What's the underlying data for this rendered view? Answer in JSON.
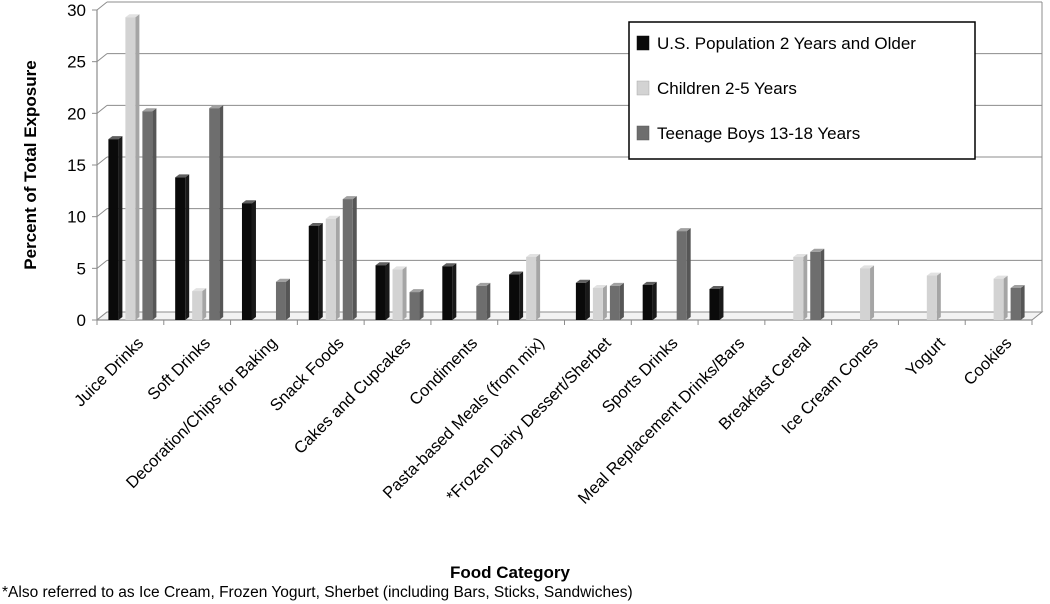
{
  "chart_data": {
    "type": "bar",
    "title": "",
    "xlabel": "Food Category",
    "ylabel": "Percent of Total Exposure",
    "ylim": [
      0,
      30
    ],
    "yticks": [
      0,
      5,
      10,
      15,
      20,
      25,
      30
    ],
    "grid": true,
    "legend_position": "top-right",
    "categories": [
      "Juice Drinks",
      "Soft Drinks",
      "Decoration/Chips for Baking",
      "Snack Foods",
      "Cakes and Cupcakes",
      "Condiments",
      "Pasta-based Meals (from mix)",
      "*Frozen Dairy Dessert/Sherbet",
      "Sports Drinks",
      "Meal Replacement Drinks/Bars",
      "Breakfast Cereal",
      "Ice Cream Cones",
      "Yogurt",
      "Cookies"
    ],
    "series": [
      {
        "name": "U.S. Population 2 Years and Older",
        "color": "#0a0a0a",
        "values": [
          17.5,
          13.8,
          11.3,
          9.1,
          5.3,
          5.2,
          4.4,
          3.6,
          3.4,
          3.0,
          null,
          null,
          null,
          null
        ]
      },
      {
        "name": "Children 2-5 Years",
        "color": "#d3d3d3",
        "values": [
          29.3,
          2.8,
          null,
          9.8,
          4.9,
          null,
          6.1,
          3.1,
          null,
          null,
          6.1,
          5.0,
          4.3,
          4.0
        ]
      },
      {
        "name": "Teenage Boys 13-18 Years",
        "color": "#6e6e6e",
        "values": [
          20.2,
          20.5,
          3.7,
          11.7,
          2.7,
          3.3,
          null,
          3.3,
          8.6,
          null,
          6.6,
          null,
          null,
          3.1
        ]
      }
    ]
  },
  "footnote": "*Also referred to as Ice Cream, Frozen Yogurt, Sherbet (including Bars, Sticks, Sandwiches)"
}
